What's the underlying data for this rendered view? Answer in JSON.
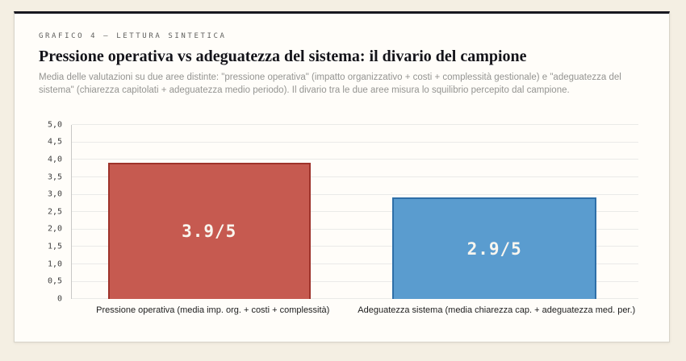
{
  "theme": {
    "page_background": "#f4efe3",
    "card_background": "#fffdf9",
    "card_top_border": "#181820"
  },
  "card": {
    "eyebrow": "GRAFICO 4 — LETTURA SINTETICA",
    "title": "Pressione operativa vs adeguatezza del sistema: il divario del campione",
    "subtitle": "Media delle valutazioni su due aree distinte: \"pressione operativa\" (impatto organizzativo + costi + complessità gestionale) e \"adeguatezza del sistema\" (chiarezza capitolati + adeguatezza medio periodo). Il divario tra le due aree misura lo squilibrio percepito dal campione."
  },
  "chart_data": {
    "type": "bar",
    "title": "Pressione operativa vs adeguatezza del sistema: il divario del campione",
    "categories": [
      "Pressione operativa (media imp. org. + costi + complessità)",
      "Adeguatezza sistema (media chiarezza cap. + adeguatezza med. per.)"
    ],
    "values": [
      3.9,
      2.9
    ],
    "bar_labels": [
      "3.9/5",
      "2.9/5"
    ],
    "bar_colors": [
      "#c65a50",
      "#5a9ccf"
    ],
    "bar_border_colors": [
      "#9e332b",
      "#2e6fa8"
    ],
    "xlabel": "",
    "ylabel": "",
    "ylim": [
      0,
      5
    ],
    "ytick_step": 0.5,
    "ytick_labels": [
      "5,0",
      "4,5",
      "4,0",
      "3,5",
      "3,0",
      "2,5",
      "2,0",
      "1,5",
      "1,0",
      "0,5",
      "0"
    ],
    "grid": true,
    "legend": false
  }
}
